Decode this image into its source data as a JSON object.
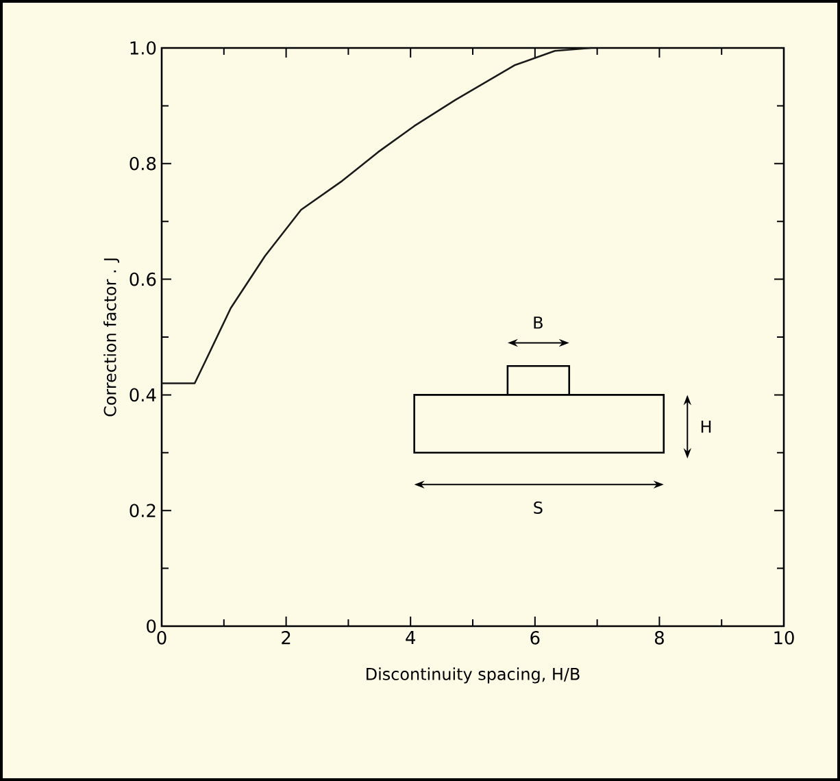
{
  "chart_data": {
    "type": "line",
    "xlabel": "Discontinuity spacing, H/B",
    "ylabel": "Correction factor . J",
    "x": [
      0,
      0.53,
      0.71,
      1.11,
      1.66,
      2.24,
      2.9,
      3.48,
      4.06,
      4.72,
      5.67,
      6.32,
      6.9
    ],
    "series": [
      {
        "color": "#1a1a1a",
        "values": [
          0.42,
          0.42,
          0.46,
          0.55,
          0.64,
          0.72,
          0.77,
          0.82,
          0.865,
          0.91,
          0.97,
          0.995,
          1.0
        ]
      }
    ],
    "xlim": [
      0,
      10
    ],
    "ylim": [
      0,
      1
    ],
    "xticks": [
      0,
      2,
      4,
      6,
      8,
      10
    ],
    "yticks": [
      0,
      0.2,
      0.4,
      0.6,
      0.8,
      {
        "value": 1,
        "label": "1.0"
      }
    ],
    "annotations": [
      "B",
      "H",
      "S"
    ],
    "grid": false,
    "marker": "none",
    "line_style": "solid"
  }
}
